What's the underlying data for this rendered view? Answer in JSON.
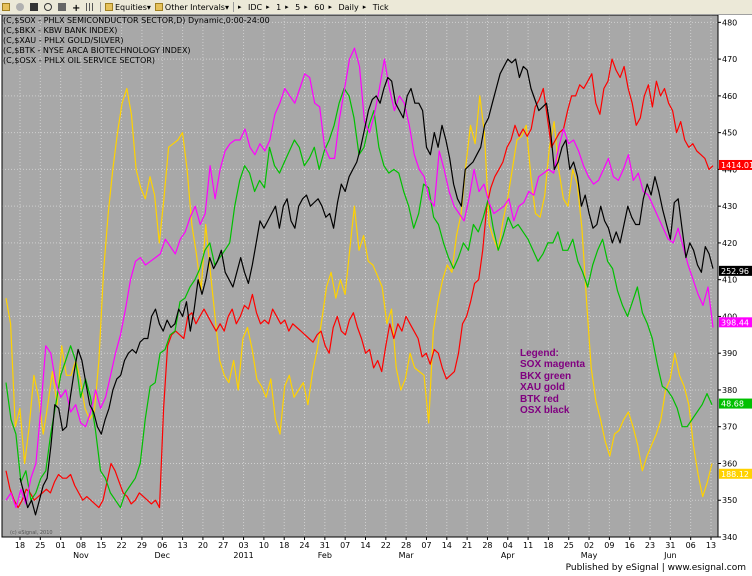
{
  "toolbar": {
    "items": [
      {
        "name": "folder-icon",
        "label": ""
      },
      {
        "name": "gear-icon",
        "label": ""
      },
      {
        "name": "square-icon",
        "label": ""
      },
      {
        "name": "circle-icon",
        "label": ""
      },
      {
        "name": "print-icon",
        "label": ""
      },
      {
        "name": "plus-icon",
        "label": "+"
      },
      {
        "name": "grid-icon",
        "label": ""
      },
      {
        "name": "equities-folder",
        "label": "Equities"
      },
      {
        "name": "other-intervals-folder",
        "label": "Other Intervals"
      },
      {
        "name": "interval-idc",
        "label": "IDC"
      },
      {
        "name": "interval-1",
        "label": "1"
      },
      {
        "name": "interval-5",
        "label": "5"
      },
      {
        "name": "interval-60",
        "label": "60"
      },
      {
        "name": "interval-daily",
        "label": "Daily"
      },
      {
        "name": "interval-tick",
        "label": "Tick"
      }
    ]
  },
  "footer": {
    "text": "Published by eSignal | www.esignal.com"
  },
  "watermark": "(c) eSignal, 2010",
  "legend": {
    "title": "Legend:",
    "lines": [
      "SOX magenta",
      "BKX green",
      "XAU gold",
      "BTK red",
      "OSX black"
    ]
  },
  "colors": {
    "plot_bg": "#a8a8a8",
    "grid": "#cfcfcf",
    "sox": "#ff00ff",
    "bkx": "#00c000",
    "xau": "#ffd200",
    "btk": "#ff0000",
    "osx": "#000000"
  },
  "chart_data": {
    "type": "line",
    "series_labels": [
      "(C,$SOX - PHLX SEMICONDUCTOR SECTOR,D) Dynamic,0:00-24:00",
      "(C,$BKX - KBW BANK INDEX)",
      "(C,$XAU - PHLX GOLD/SILVER)",
      "(C,$BTK - NYSE ARCA BIOTECHNOLOGY INDEX)",
      "(C,$OSX - PHLX OIL SERVICE SECTOR)"
    ],
    "y_ticks": [
      340,
      350,
      360,
      370,
      380,
      390,
      400,
      410,
      420,
      430,
      440,
      450,
      460,
      470,
      480
    ],
    "ylim": [
      340,
      482
    ],
    "x_ticks": [
      "18",
      "25",
      "01",
      "08",
      "15",
      "22",
      "29",
      "06",
      "13",
      "20",
      "27",
      "03",
      "10",
      "18",
      "24",
      "31",
      "07",
      "14",
      "22",
      "28",
      "07",
      "14",
      "21",
      "28",
      "04",
      "11",
      "18",
      "25",
      "02",
      "09",
      "16",
      "23",
      "31",
      "06",
      "13"
    ],
    "x_month_labels": [
      {
        "label": "Nov",
        "at": "01"
      },
      {
        "label": "Dec",
        "at": "29"
      },
      {
        "label": "2011",
        "at": "03"
      },
      {
        "label": "Feb",
        "at": "31"
      },
      {
        "label": "Mar",
        "at": "28"
      },
      {
        "label": "Apr",
        "at": "28b"
      },
      {
        "label": "May",
        "at": "02"
      },
      {
        "label": "Jun",
        "at": "31b"
      }
    ],
    "last_values": [
      {
        "series": "BTK",
        "value": "1414.01",
        "y": 441.2
      },
      {
        "series": "OSX",
        "value": "252.96",
        "y": 412.4
      },
      {
        "series": "SOX",
        "value": "398.44",
        "y": 398.4
      },
      {
        "series": "BKX",
        "value": "48.68",
        "y": 376.3
      },
      {
        "series": "XAU",
        "value": "188.12",
        "y": 357.2
      }
    ],
    "series": [
      {
        "key": "SOX",
        "values": [
          350,
          352,
          348,
          353,
          349,
          356,
          360,
          375,
          392,
          390,
          382,
          378,
          380,
          374,
          376,
          371,
          370,
          374,
          380,
          375,
          378,
          384,
          390,
          395,
          402,
          410,
          415,
          416,
          414,
          415,
          416,
          417,
          421,
          419,
          417,
          421,
          423,
          427,
          430,
          425,
          428,
          441,
          432,
          440,
          445,
          447,
          448,
          448,
          451,
          446,
          444,
          447,
          445,
          448,
          455,
          458,
          462,
          460,
          458,
          462,
          466,
          465,
          458,
          457,
          446,
          443,
          443,
          454,
          462,
          470,
          473,
          468,
          453,
          450,
          455,
          462,
          470,
          462,
          456,
          460,
          458,
          452,
          444,
          440,
          438,
          432,
          430,
          445,
          440,
          434,
          430,
          428,
          426,
          432,
          440,
          434,
          436,
          431,
          428,
          429,
          430,
          432,
          426,
          430,
          431,
          434,
          433,
          438,
          439,
          440,
          439,
          446,
          451,
          447,
          448,
          445,
          441,
          438,
          436,
          437,
          440,
          443,
          438,
          437,
          440,
          444,
          437,
          439,
          434,
          433,
          430,
          427,
          424,
          421,
          420,
          424,
          419,
          414,
          410,
          406,
          403,
          408,
          397
        ]
      },
      {
        "key": "BKX",
        "values": [
          382,
          372,
          368,
          355,
          358,
          350,
          352,
          356,
          358,
          368,
          376,
          384,
          388,
          392,
          388,
          378,
          383,
          378,
          369,
          358,
          356,
          352,
          350,
          348,
          352,
          354,
          356,
          360,
          372,
          381,
          382,
          390,
          391,
          395,
          396,
          404,
          405,
          408,
          410,
          413,
          418,
          420,
          414,
          416,
          418,
          420,
          430,
          437,
          441,
          439,
          434,
          437,
          435,
          446,
          441,
          439,
          442,
          445,
          448,
          446,
          441,
          443,
          446,
          440,
          445,
          448,
          452,
          458,
          462,
          460,
          454,
          444,
          446,
          452,
          456,
          446,
          441,
          439,
          440,
          439,
          434,
          430,
          424,
          428,
          436,
          435,
          427,
          425,
          420,
          416,
          413,
          416,
          420,
          418,
          425,
          423,
          427,
          432,
          424,
          418,
          422,
          427,
          424,
          425,
          423,
          421,
          418,
          415,
          417,
          420,
          420,
          423,
          418,
          418,
          421,
          415,
          412,
          408,
          414,
          418,
          421,
          415,
          413,
          407,
          403,
          400,
          404,
          408,
          401,
          398,
          394,
          387,
          381,
          380,
          378,
          375,
          370,
          370,
          372,
          374,
          376,
          379,
          376
        ]
      },
      {
        "key": "XAU",
        "values": [
          405,
          398,
          370,
          375,
          360,
          370,
          384,
          378,
          368,
          376,
          385,
          376,
          392,
          384,
          384,
          388,
          383,
          375,
          372,
          374,
          388,
          412,
          428,
          440,
          450,
          458,
          462,
          455,
          440,
          435,
          432,
          438,
          433,
          420,
          432,
          446,
          447,
          448,
          450,
          440,
          425,
          417,
          407,
          425,
          412,
          400,
          388,
          384,
          382,
          388,
          380,
          394,
          397,
          391,
          383,
          381,
          378,
          383,
          372,
          368,
          381,
          384,
          378,
          380,
          382,
          376,
          385,
          391,
          399,
          408,
          412,
          405,
          410,
          406,
          418,
          430,
          418,
          422,
          415,
          414,
          411,
          408,
          398,
          402,
          386,
          380,
          383,
          390,
          386,
          385,
          384,
          371,
          396,
          404,
          410,
          414,
          412,
          422,
          428,
          441,
          452,
          447,
          460,
          450,
          425,
          421,
          418,
          426,
          432,
          440,
          448,
          449,
          452,
          438,
          428,
          427,
          433,
          446,
          453,
          440,
          432,
          430,
          440,
          436,
          424,
          404,
          386,
          377,
          372,
          366,
          362,
          368,
          369,
          372,
          374,
          370,
          365,
          358,
          362,
          365,
          368,
          372,
          380,
          383,
          390,
          384,
          381,
          376,
          365,
          357,
          351,
          355,
          360
        ]
      },
      {
        "key": "BTK",
        "values": [
          358,
          353,
          350,
          348,
          350,
          353,
          352,
          350,
          351,
          352,
          353,
          352,
          355,
          357,
          356,
          356,
          357,
          354,
          352,
          350,
          351,
          350,
          349,
          348,
          350,
          355,
          360,
          358,
          355,
          352,
          351,
          349,
          350,
          352,
          351,
          350,
          349,
          350,
          348,
          375,
          392,
          395,
          396,
          395,
          394,
          400,
          401,
          398,
          400,
          402,
          400,
          398,
          396,
          398,
          396,
          400,
          402,
          398,
          400,
          403,
          402,
          406,
          401,
          398,
          399,
          398,
          402,
          400,
          398,
          399,
          396,
          398,
          397,
          396,
          395,
          394,
          393,
          395,
          396,
          392,
          390,
          397,
          400,
          396,
          395,
          399,
          401,
          397,
          394,
          390,
          391,
          386,
          388,
          385,
          392,
          398,
          394,
          398,
          396,
          400,
          398,
          396,
          394,
          389,
          390,
          387,
          391,
          390,
          386,
          383,
          384,
          385,
          390,
          398,
          400,
          404,
          409,
          410,
          418,
          430,
          435,
          438,
          440,
          442,
          446,
          448,
          452,
          449,
          451,
          449,
          451,
          457,
          459,
          462,
          454,
          446,
          448,
          450,
          451,
          456,
          460,
          460,
          463,
          462,
          464,
          466,
          458,
          455,
          462,
          464,
          470,
          467,
          465,
          468,
          462,
          458,
          452,
          454,
          460,
          463,
          457,
          464,
          460,
          462,
          458,
          456,
          450,
          453,
          448,
          446,
          447,
          445,
          444,
          443,
          440,
          441
        ]
      },
      {
        "key": "OSX",
        "values": [
          356,
          352,
          348,
          350,
          346,
          350,
          354,
          356,
          365,
          376,
          375,
          369,
          370,
          378,
          385,
          391,
          388,
          382,
          376,
          374,
          370,
          368,
          372,
          375,
          380,
          383,
          384,
          388,
          390,
          391,
          390,
          393,
          394,
          394,
          400,
          402,
          398,
          396,
          399,
          397,
          398,
          402,
          400,
          404,
          396,
          402,
          410,
          406,
          410,
          416,
          413,
          415,
          418,
          412,
          410,
          408,
          412,
          416,
          412,
          409,
          414,
          420,
          426,
          424,
          426,
          428,
          430,
          424,
          430,
          432,
          426,
          424,
          430,
          432,
          433,
          430,
          431,
          432,
          430,
          427,
          428,
          424,
          431,
          436,
          434,
          438,
          440,
          442,
          446,
          451,
          456,
          459,
          460,
          458,
          462,
          465,
          464,
          458,
          456,
          454,
          460,
          462,
          458,
          458,
          456,
          446,
          444,
          450,
          446,
          452,
          448,
          443,
          436,
          432,
          430,
          440,
          441,
          442,
          444,
          446,
          452,
          454,
          458,
          462,
          466,
          468,
          470,
          469,
          470,
          465,
          468,
          467,
          462,
          459,
          456,
          457,
          458,
          451,
          440,
          442,
          446,
          448,
          440,
          442,
          438,
          430,
          433,
          428,
          424,
          425,
          430,
          426,
          424,
          420,
          423,
          420,
          425,
          430,
          427,
          425,
          425,
          432,
          436,
          433,
          438,
          434,
          429,
          425,
          421,
          431,
          432,
          424,
          416,
          420,
          418,
          414,
          412,
          419,
          417,
          413
        ]
      }
    ]
  }
}
